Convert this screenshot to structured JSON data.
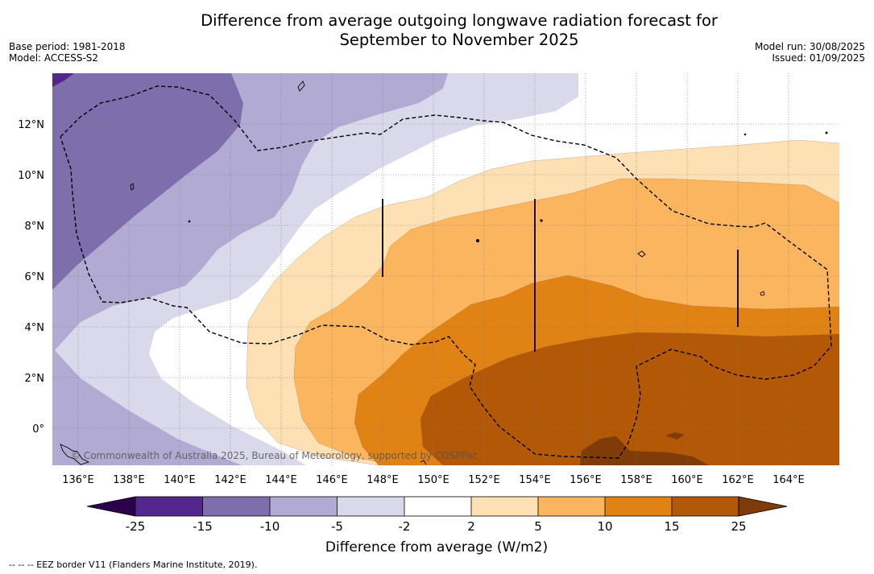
{
  "title_line1": "Difference from average outgoing longwave radiation forecast for",
  "title_line2": "September to November 2025",
  "base_period": "Base period: 1981-2018",
  "model": "Model: ACCESS-S2",
  "model_run": "Model run: 30/08/2025",
  "issued": "Issued: 01/09/2025",
  "copyright": "© Commonwealth of Australia 2025, Bureau of Meteorology, supported by COSPPac",
  "colorbar_label": "Difference from average (W/m2)",
  "footnote": "-- -- -- EEZ border V11 (Flanders Marine Institute, 2019).",
  "lon_ticks": [
    "136°E",
    "138°E",
    "140°E",
    "142°E",
    "144°E",
    "146°E",
    "148°E",
    "150°E",
    "152°E",
    "154°E",
    "156°E",
    "158°E",
    "160°E",
    "162°E",
    "164°E"
  ],
  "lat_ticks": [
    "12°N",
    "10°N",
    "8°N",
    "6°N",
    "4°N",
    "2°N",
    "0°"
  ],
  "colorbar": {
    "ticks": [
      "-25",
      "-15",
      "-10",
      "-5",
      "-2",
      "2",
      "5",
      "10",
      "15",
      "25"
    ],
    "colors": [
      "#54278f",
      "#7e6eab",
      "#b1aad2",
      "#d9d9eb",
      "#ffffff",
      "#fee0b5",
      "#fbb55f",
      "#e08214",
      "#b35806"
    ],
    "under_color": "#2d004b",
    "over_color": "#7f3b08"
  }
}
